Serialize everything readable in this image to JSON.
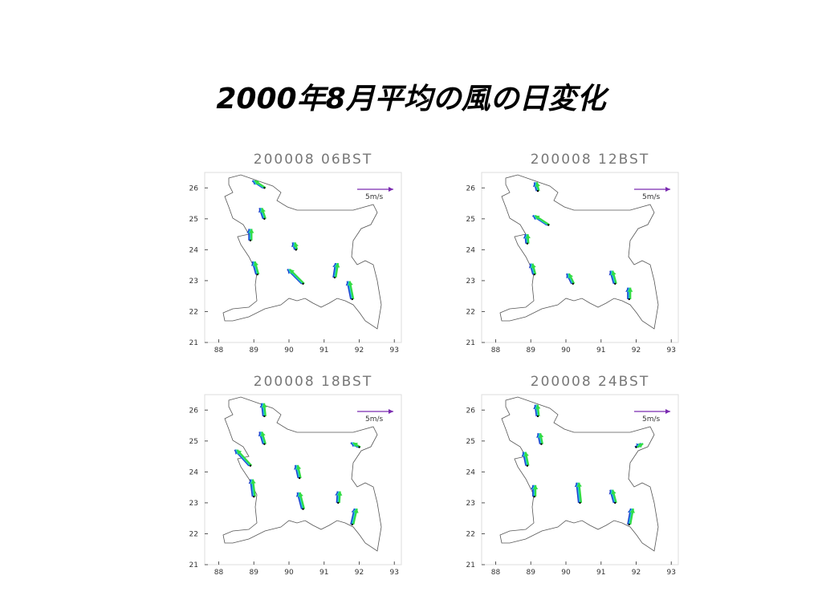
{
  "title": "2000年8月平均の風の日変化",
  "panels": [
    {
      "label": "200008 06BST",
      "scale_label": "5m/s",
      "scale_value": 5,
      "xlim": [
        87.6,
        93.2
      ],
      "ylim": [
        21,
        26.5
      ],
      "xticks": [
        88,
        89,
        90,
        91,
        92,
        93
      ],
      "yticks": [
        21,
        22,
        23,
        24,
        25,
        26
      ],
      "vectors": [
        {
          "lon": 89.3,
          "lat": 26.0,
          "u": -1.5,
          "v": 1
        },
        {
          "lon": 89.3,
          "lat": 25.0,
          "u": -0.5,
          "v": 1.5
        },
        {
          "lon": 88.9,
          "lat": 24.3,
          "u": 0,
          "v": 1.6
        },
        {
          "lon": 90.2,
          "lat": 24.0,
          "u": -0.3,
          "v": 1
        },
        {
          "lon": 89.1,
          "lat": 23.2,
          "u": -0.5,
          "v": 1.8
        },
        {
          "lon": 90.4,
          "lat": 22.9,
          "u": -2,
          "v": 2
        },
        {
          "lon": 91.3,
          "lat": 23.1,
          "u": 0.3,
          "v": 2
        },
        {
          "lon": 91.8,
          "lat": 22.4,
          "u": -0.5,
          "v": 2.5
        }
      ]
    },
    {
      "label": "200008 12BST",
      "scale_label": "5m/s",
      "scale_value": 5,
      "xlim": [
        87.6,
        93.2
      ],
      "ylim": [
        21,
        26.5
      ],
      "xticks": [
        88,
        89,
        90,
        91,
        92,
        93
      ],
      "yticks": [
        21,
        22,
        23,
        24,
        25,
        26
      ],
      "vectors": [
        {
          "lon": 89.2,
          "lat": 25.9,
          "u": -0.3,
          "v": 1.2
        },
        {
          "lon": 89.5,
          "lat": 24.8,
          "u": -2,
          "v": 1.3
        },
        {
          "lon": 88.9,
          "lat": 24.2,
          "u": -0.1,
          "v": 1.3
        },
        {
          "lon": 89.1,
          "lat": 23.2,
          "u": -0.4,
          "v": 1.5
        },
        {
          "lon": 90.2,
          "lat": 22.9,
          "u": -0.7,
          "v": 1.4
        },
        {
          "lon": 91.4,
          "lat": 22.9,
          "u": -0.5,
          "v": 1.8
        },
        {
          "lon": 91.8,
          "lat": 22.4,
          "u": 0,
          "v": 1.6
        }
      ]
    },
    {
      "label": "200008 18BST",
      "scale_label": "5m/s",
      "scale_value": 5,
      "xlim": [
        87.6,
        93.2
      ],
      "ylim": [
        21,
        26.5
      ],
      "xticks": [
        88,
        89,
        90,
        91,
        92,
        93
      ],
      "yticks": [
        21,
        22,
        23,
        24,
        25,
        26
      ],
      "vectors": [
        {
          "lon": 89.3,
          "lat": 25.8,
          "u": -0.2,
          "v": 1.8
        },
        {
          "lon": 89.3,
          "lat": 24.9,
          "u": -0.5,
          "v": 1.7
        },
        {
          "lon": 88.9,
          "lat": 24.2,
          "u": -2,
          "v": 2.2
        },
        {
          "lon": 90.3,
          "lat": 23.8,
          "u": -0.4,
          "v": 1.8
        },
        {
          "lon": 89.0,
          "lat": 23.2,
          "u": -0.3,
          "v": 2.4
        },
        {
          "lon": 90.4,
          "lat": 22.8,
          "u": -0.6,
          "v": 2.3
        },
        {
          "lon": 91.4,
          "lat": 23.0,
          "u": 0.1,
          "v": 1.6
        },
        {
          "lon": 91.8,
          "lat": 22.3,
          "u": 0.5,
          "v": 2.2
        },
        {
          "lon": 92.0,
          "lat": 24.8,
          "u": -1,
          "v": 0.6
        }
      ]
    },
    {
      "label": "200008 24BST",
      "scale_label": "5m/s",
      "scale_value": 5,
      "xlim": [
        87.6,
        93.2
      ],
      "ylim": [
        21,
        26.5
      ],
      "xticks": [
        88,
        89,
        90,
        91,
        92,
        93
      ],
      "yticks": [
        21,
        22,
        23,
        24,
        25,
        26
      ],
      "vectors": [
        {
          "lon": 89.2,
          "lat": 25.8,
          "u": -0.2,
          "v": 1.6
        },
        {
          "lon": 89.3,
          "lat": 24.9,
          "u": -0.3,
          "v": 1.5
        },
        {
          "lon": 88.9,
          "lat": 24.2,
          "u": -0.4,
          "v": 1.9
        },
        {
          "lon": 90.4,
          "lat": 23.0,
          "u": -0.3,
          "v": 2.8
        },
        {
          "lon": 89.1,
          "lat": 23.2,
          "u": 0,
          "v": 1.6
        },
        {
          "lon": 91.4,
          "lat": 23.0,
          "u": -0.5,
          "v": 1.8
        },
        {
          "lon": 91.8,
          "lat": 22.3,
          "u": 0.4,
          "v": 2.2
        },
        {
          "lon": 92.0,
          "lat": 24.8,
          "u": 0.8,
          "v": 0.5
        }
      ]
    }
  ]
}
